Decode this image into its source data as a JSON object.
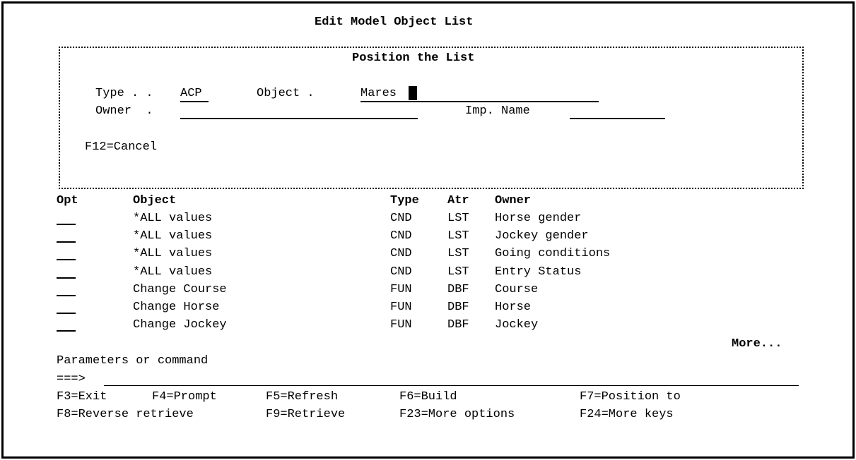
{
  "title": "Edit Model Object List",
  "window": {
    "title": "Position the List",
    "type_label": "Type . .",
    "type_value": "ACP",
    "object_label": "Object .",
    "object_value": "Mares",
    "owner_label": "Owner  .",
    "owner_value": "",
    "imp_name_label": "Imp. Name",
    "imp_name_value": "",
    "f12": "F12=Cancel"
  },
  "list": {
    "headers": {
      "opt": "Opt",
      "object": "Object",
      "type": "Type",
      "atr": "Atr",
      "owner": "Owner"
    },
    "rows": [
      {
        "opt": "",
        "object": "*ALL values",
        "type": "CND",
        "atr": "LST",
        "owner": "Horse gender"
      },
      {
        "opt": "",
        "object": "*ALL values",
        "type": "CND",
        "atr": "LST",
        "owner": "Jockey gender"
      },
      {
        "opt": "",
        "object": "*ALL values",
        "type": "CND",
        "atr": "LST",
        "owner": "Going conditions"
      },
      {
        "opt": "",
        "object": "*ALL values",
        "type": "CND",
        "atr": "LST",
        "owner": "Entry Status"
      },
      {
        "opt": "",
        "object": "Change Course",
        "type": "FUN",
        "atr": "DBF",
        "owner": "Course"
      },
      {
        "opt": "",
        "object": "Change Horse",
        "type": "FUN",
        "atr": "DBF",
        "owner": "Horse"
      },
      {
        "opt": "",
        "object": "Change Jockey",
        "type": "FUN",
        "atr": "DBF",
        "owner": "Jockey"
      }
    ],
    "more": "More..."
  },
  "command": {
    "label": "Parameters or command",
    "prompt": "===>",
    "value": ""
  },
  "fkeys": [
    [
      "F3=Exit",
      "F4=Prompt",
      "F5=Refresh",
      "F6=Build",
      "F7=Position to"
    ],
    [
      "F8=Reverse retrieve",
      "F9=Retrieve",
      "F23=More options",
      "F24=More keys"
    ]
  ]
}
